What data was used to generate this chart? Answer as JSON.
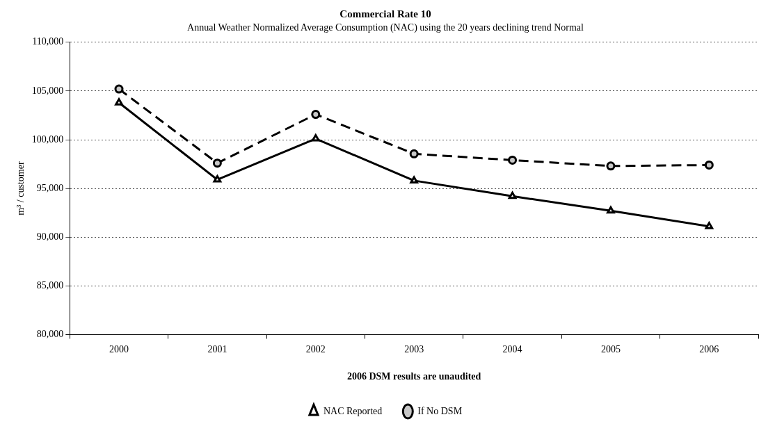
{
  "chart_data": {
    "type": "line",
    "title": "Commercial Rate 10",
    "subtitle": "Annual Weather Normalized Average Consumption (NAC) using the 20 years declining trend Normal",
    "xlabel": "2006 DSM results are unaudited",
    "ylabel": "m³ / customer",
    "categories": [
      "2000",
      "2001",
      "2002",
      "2003",
      "2004",
      "2005",
      "2006"
    ],
    "series": [
      {
        "name": "NAC Reported",
        "color": "#000000",
        "marker": "triangle",
        "line_style": "solid",
        "values": [
          103800,
          95900,
          100100,
          95800,
          94200,
          92700,
          91100
        ]
      },
      {
        "name": "If No DSM",
        "color": "#000000",
        "marker": "circle",
        "line_style": "dashed",
        "values": [
          105200,
          97600,
          102600,
          98550,
          97900,
          97300,
          97400
        ]
      }
    ],
    "ylim": [
      80000,
      110000
    ],
    "yticks": [
      {
        "value": 80000,
        "label": "80,000"
      },
      {
        "value": 85000,
        "label": "85,000"
      },
      {
        "value": 90000,
        "label": "90,000"
      },
      {
        "value": 95000,
        "label": "95,000"
      },
      {
        "value": 100000,
        "label": "100,000"
      },
      {
        "value": 105000,
        "label": "105,000"
      },
      {
        "value": 110000,
        "label": "110,000"
      }
    ],
    "grid": "y",
    "legend": "bottom"
  }
}
